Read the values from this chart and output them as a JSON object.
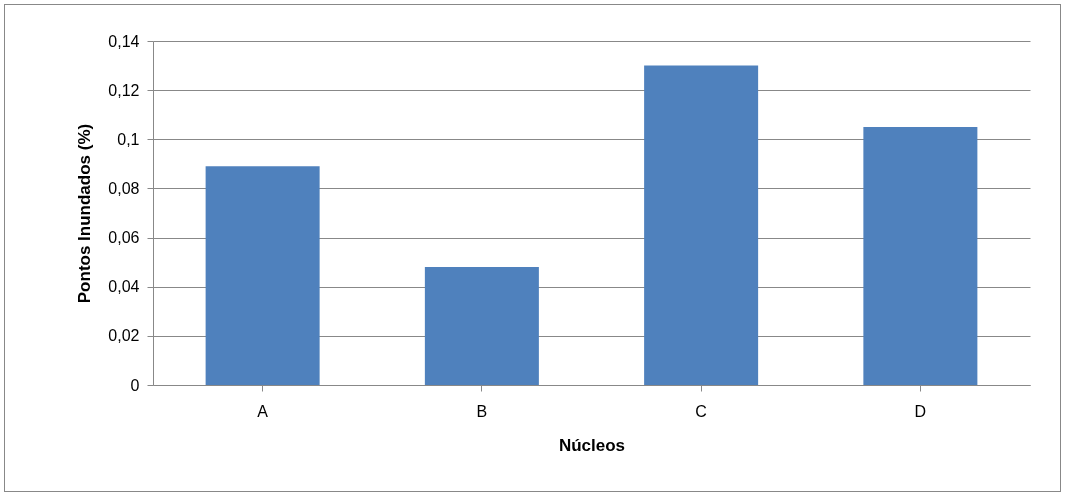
{
  "chart_data": {
    "type": "bar",
    "xlabel": "Núcleos",
    "ylabel": "Pontos Inundados  (%)",
    "categories": [
      "A",
      "B",
      "C",
      "D"
    ],
    "values": [
      0.089,
      0.048,
      0.13,
      0.105
    ],
    "color": "#4f81bd",
    "ylim": [
      0,
      0.14
    ],
    "yticks": [
      {
        "value": 0,
        "label": "0"
      },
      {
        "value": 0.02,
        "label": "0,02"
      },
      {
        "value": 0.04,
        "label": "0,04"
      },
      {
        "value": 0.06,
        "label": "0,06"
      },
      {
        "value": 0.08,
        "label": "0,08"
      },
      {
        "value": 0.1,
        "label": "0,1"
      },
      {
        "value": 0.12,
        "label": "0,12"
      },
      {
        "value": 0.14,
        "label": "0,14"
      }
    ],
    "grid": "y"
  }
}
